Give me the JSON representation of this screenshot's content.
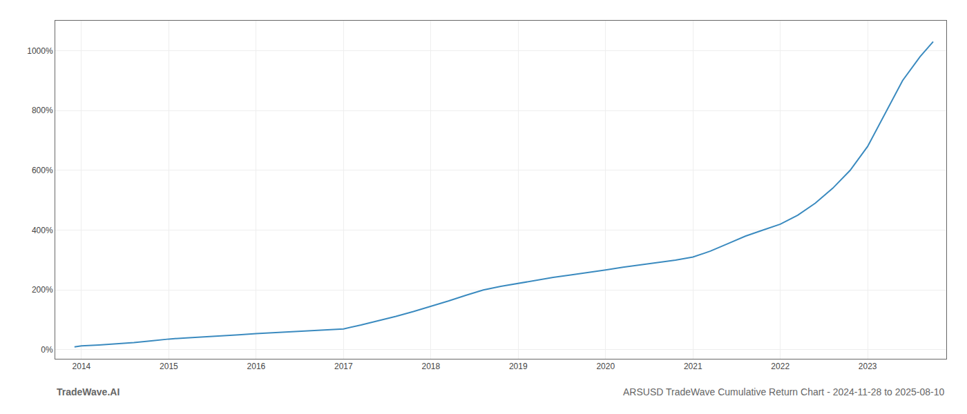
{
  "chart_data": {
    "type": "line",
    "title": "ARSUSD TradeWave Cumulative Return Chart - 2024-11-28 to 2025-08-10",
    "annotations": [
      "TradeWave.AI"
    ],
    "x": [
      2013.92,
      2014.0,
      2014.2,
      2014.4,
      2014.6,
      2014.8,
      2015.0,
      2015.2,
      2015.4,
      2015.6,
      2015.8,
      2016.0,
      2016.2,
      2016.4,
      2016.6,
      2016.8,
      2017.0,
      2017.2,
      2017.4,
      2017.6,
      2017.8,
      2018.0,
      2018.2,
      2018.4,
      2018.6,
      2018.8,
      2019.0,
      2019.2,
      2019.4,
      2019.6,
      2019.8,
      2020.0,
      2020.2,
      2020.4,
      2020.6,
      2020.8,
      2021.0,
      2021.2,
      2021.4,
      2021.6,
      2021.8,
      2022.0,
      2022.2,
      2022.4,
      2022.6,
      2022.8,
      2023.0,
      2023.2,
      2023.4,
      2023.6,
      2023.75
    ],
    "values": [
      10,
      13,
      16,
      20,
      24,
      30,
      36,
      40,
      43,
      46,
      50,
      54,
      57,
      60,
      63,
      66,
      70,
      83,
      97,
      112,
      128,
      145,
      163,
      182,
      200,
      212,
      222,
      233,
      242,
      250,
      258,
      267,
      276,
      284,
      292,
      300,
      310,
      330,
      355,
      380,
      400,
      420,
      450,
      490,
      540,
      600,
      680,
      790,
      900,
      980,
      1030
    ],
    "color": "#3a8abf",
    "xlim": [
      2013.7,
      2023.9
    ],
    "xticks": [
      2014,
      2015,
      2016,
      2017,
      2018,
      2019,
      2020,
      2021,
      2022,
      2023
    ],
    "ylim": [
      -30,
      1100
    ],
    "yticks": [
      {
        "value": 0,
        "label": "0%"
      },
      {
        "value": 200,
        "label": "200%"
      },
      {
        "value": 400,
        "label": "400%"
      },
      {
        "value": 600,
        "label": "600%"
      },
      {
        "value": 800,
        "label": "800%"
      },
      {
        "value": 1000,
        "label": "1000%"
      }
    ],
    "grid": true
  }
}
